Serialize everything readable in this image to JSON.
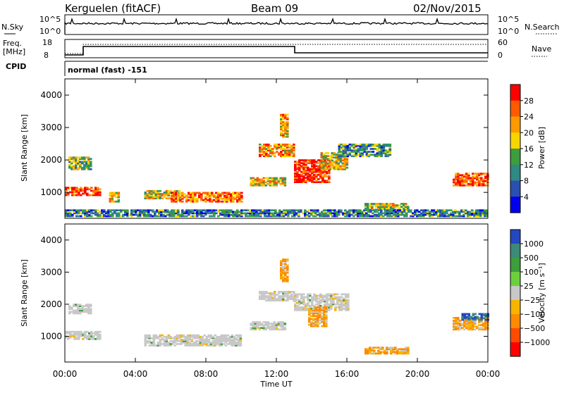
{
  "header": {
    "station": "Kerguelen (fitACF)",
    "beam": "Beam 09",
    "date": "02/Nov/2015"
  },
  "nsky_panel": {
    "left_label": "N.Sky",
    "ticks_left": [
      "10^5",
      "10^0"
    ],
    "right_label": "N.Search",
    "ticks_right": [
      "10^5",
      "10^0"
    ]
  },
  "freq_panel": {
    "left_label": "Freq.",
    "left_unit": "[MHz]",
    "ticks_left": [
      "18",
      "8"
    ],
    "right_label": "Nave",
    "ticks_right": [
      "60",
      "0"
    ]
  },
  "cpid": {
    "label": "CPID",
    "mode": "normal (fast)  -151"
  },
  "chart_data": [
    {
      "type": "heatmap",
      "quantity": "Power",
      "ylabel": "Slant Range [km]",
      "ylim": [
        200,
        4500
      ],
      "yticks": [
        1000,
        2000,
        3000,
        4000
      ],
      "colorbar_label": "Power [dB]",
      "colorbar_ticks": [
        "28",
        "24",
        "20",
        "16",
        "12",
        "8",
        "4"
      ],
      "colorbar_colors": [
        "#ff0000",
        "#ff5a00",
        "#ff9a00",
        "#f7d600",
        "#3c9e3c",
        "#2e8a82",
        "#2a4fb0",
        "#0000ee"
      ],
      "regions": [
        {
          "t0": 0.0,
          "t1": 2.0,
          "r0": 900,
          "r1": 1150,
          "level": 0.85
        },
        {
          "t0": 2.5,
          "t1": 3.0,
          "r0": 700,
          "r1": 1000,
          "level": 0.6
        },
        {
          "t0": 4.5,
          "t1": 6.5,
          "r0": 800,
          "r1": 1050,
          "level": 0.55
        },
        {
          "t0": 6.0,
          "t1": 10.0,
          "r0": 700,
          "r1": 1000,
          "level": 0.75
        },
        {
          "t0": 10.5,
          "t1": 12.5,
          "r0": 1200,
          "r1": 1450,
          "level": 0.6
        },
        {
          "t0": 11.0,
          "t1": 13.0,
          "r0": 2100,
          "r1": 2500,
          "level": 0.7
        },
        {
          "t0": 13.0,
          "t1": 15.0,
          "r0": 1300,
          "r1": 2000,
          "level": 0.9
        },
        {
          "t0": 14.5,
          "t1": 16.0,
          "r0": 1700,
          "r1": 2200,
          "level": 0.6
        },
        {
          "t0": 0.2,
          "t1": 1.5,
          "r0": 1700,
          "r1": 2100,
          "level": 0.45
        },
        {
          "t0": 17.0,
          "t1": 19.5,
          "r0": 450,
          "r1": 650,
          "level": 0.55
        },
        {
          "t0": 22.0,
          "t1": 24.0,
          "r0": 1200,
          "r1": 1600,
          "level": 0.85
        },
        {
          "t0": 15.5,
          "t1": 18.5,
          "r0": 2100,
          "r1": 2500,
          "level": 0.35
        },
        {
          "t0": 12.2,
          "t1": 12.6,
          "r0": 2700,
          "r1": 3400,
          "level": 0.65
        },
        {
          "t0": 0.0,
          "t1": 24.0,
          "r0": 250,
          "r1": 450,
          "level": 0.3
        }
      ]
    },
    {
      "type": "heatmap",
      "quantity": "Velocity",
      "ylabel": "Slant Range [km]",
      "xlabel": "Time UT",
      "ylim": [
        200,
        4500
      ],
      "yticks": [
        1000,
        2000,
        3000,
        4000
      ],
      "x_ticks": [
        "00:00",
        "04:00",
        "08:00",
        "12:00",
        "16:00",
        "20:00",
        "00:00"
      ],
      "colorbar_label": "Velocity [m s⁻¹]",
      "colorbar_ticks": [
        "1000",
        "500",
        "100",
        "25",
        "−25",
        "−100",
        "−500",
        "−1000"
      ],
      "colorbar_colors": [
        "#2447c2",
        "#3c8a7a",
        "#3c9e3c",
        "#6ccf3c",
        "#c8c8c8",
        "#f7b400",
        "#ff8a00",
        "#ff4a00",
        "#ff0000"
      ],
      "regions": [
        {
          "t0": 0.0,
          "t1": 2.0,
          "r0": 900,
          "r1": 1150,
          "vel": "gray"
        },
        {
          "t0": 4.5,
          "t1": 10.0,
          "r0": 700,
          "r1": 1050,
          "vel": "gray"
        },
        {
          "t0": 10.5,
          "t1": 12.5,
          "r0": 1200,
          "r1": 1450,
          "vel": "gray"
        },
        {
          "t0": 11.0,
          "t1": 13.0,
          "r0": 2100,
          "r1": 2400,
          "vel": "gray"
        },
        {
          "t0": 13.0,
          "t1": 16.0,
          "r0": 1800,
          "r1": 2300,
          "vel": "gray"
        },
        {
          "t0": 13.8,
          "t1": 14.8,
          "r0": 1300,
          "r1": 1900,
          "vel": "orange"
        },
        {
          "t0": 17.0,
          "t1": 19.5,
          "r0": 450,
          "r1": 650,
          "vel": "orange"
        },
        {
          "t0": 22.0,
          "t1": 24.0,
          "r0": 1200,
          "r1": 1600,
          "vel": "orange"
        },
        {
          "t0": 22.5,
          "t1": 24.0,
          "r0": 1500,
          "r1": 1700,
          "vel": "blue"
        },
        {
          "t0": 0.2,
          "t1": 1.5,
          "r0": 1700,
          "r1": 2000,
          "vel": "gray"
        },
        {
          "t0": 12.2,
          "t1": 12.6,
          "r0": 2700,
          "r1": 3400,
          "vel": "orange"
        }
      ]
    }
  ]
}
